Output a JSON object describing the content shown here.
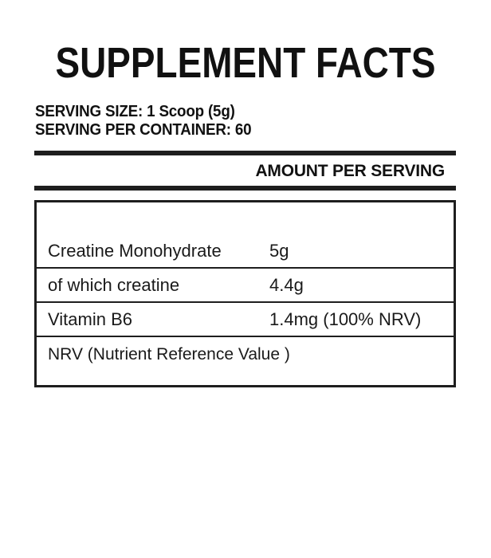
{
  "label": {
    "title": "SUPPLEMENT FACTS",
    "serving_size": "SERVING SIZE: 1 Scoop (5g)",
    "serving_per_container": "SERVING PER CONTAINER: 60",
    "amount_header": "AMOUNT PER SERVING",
    "rows": [
      {
        "name": "Creatine Monohydrate",
        "amount": "5g"
      },
      {
        "name": "of which creatine",
        "amount": "4.4g"
      },
      {
        "name": "Vitamin B6",
        "amount": "1.4mg (100% NRV)"
      }
    ],
    "footnote": "NRV (Nutrient Reference Value )",
    "colors": {
      "background": "#ffffff",
      "text": "#111111",
      "rule": "#1e1e1e"
    }
  }
}
